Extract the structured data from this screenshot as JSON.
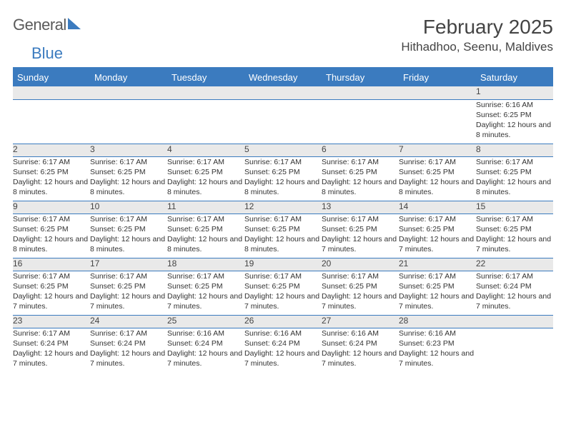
{
  "brand": {
    "word1": "General",
    "word2": "Blue"
  },
  "title": "February 2025",
  "location": "Hithadhoo, Seenu, Maldives",
  "colors": {
    "accent": "#3b7bbf",
    "header_bg": "#3b7bbf",
    "header_text": "#ffffff",
    "daynum_bg": "#e9e9e9",
    "body_text": "#333333",
    "background": "#ffffff"
  },
  "calendar": {
    "type": "table",
    "columns": [
      "Sunday",
      "Monday",
      "Tuesday",
      "Wednesday",
      "Thursday",
      "Friday",
      "Saturday"
    ],
    "weeks": [
      [
        null,
        null,
        null,
        null,
        null,
        null,
        {
          "day": "1",
          "sunrise": "Sunrise: 6:16 AM",
          "sunset": "Sunset: 6:25 PM",
          "daylight": "Daylight: 12 hours and 8 minutes."
        }
      ],
      [
        {
          "day": "2",
          "sunrise": "Sunrise: 6:17 AM",
          "sunset": "Sunset: 6:25 PM",
          "daylight": "Daylight: 12 hours and 8 minutes."
        },
        {
          "day": "3",
          "sunrise": "Sunrise: 6:17 AM",
          "sunset": "Sunset: 6:25 PM",
          "daylight": "Daylight: 12 hours and 8 minutes."
        },
        {
          "day": "4",
          "sunrise": "Sunrise: 6:17 AM",
          "sunset": "Sunset: 6:25 PM",
          "daylight": "Daylight: 12 hours and 8 minutes."
        },
        {
          "day": "5",
          "sunrise": "Sunrise: 6:17 AM",
          "sunset": "Sunset: 6:25 PM",
          "daylight": "Daylight: 12 hours and 8 minutes."
        },
        {
          "day": "6",
          "sunrise": "Sunrise: 6:17 AM",
          "sunset": "Sunset: 6:25 PM",
          "daylight": "Daylight: 12 hours and 8 minutes."
        },
        {
          "day": "7",
          "sunrise": "Sunrise: 6:17 AM",
          "sunset": "Sunset: 6:25 PM",
          "daylight": "Daylight: 12 hours and 8 minutes."
        },
        {
          "day": "8",
          "sunrise": "Sunrise: 6:17 AM",
          "sunset": "Sunset: 6:25 PM",
          "daylight": "Daylight: 12 hours and 8 minutes."
        }
      ],
      [
        {
          "day": "9",
          "sunrise": "Sunrise: 6:17 AM",
          "sunset": "Sunset: 6:25 PM",
          "daylight": "Daylight: 12 hours and 8 minutes."
        },
        {
          "day": "10",
          "sunrise": "Sunrise: 6:17 AM",
          "sunset": "Sunset: 6:25 PM",
          "daylight": "Daylight: 12 hours and 8 minutes."
        },
        {
          "day": "11",
          "sunrise": "Sunrise: 6:17 AM",
          "sunset": "Sunset: 6:25 PM",
          "daylight": "Daylight: 12 hours and 8 minutes."
        },
        {
          "day": "12",
          "sunrise": "Sunrise: 6:17 AM",
          "sunset": "Sunset: 6:25 PM",
          "daylight": "Daylight: 12 hours and 8 minutes."
        },
        {
          "day": "13",
          "sunrise": "Sunrise: 6:17 AM",
          "sunset": "Sunset: 6:25 PM",
          "daylight": "Daylight: 12 hours and 7 minutes."
        },
        {
          "day": "14",
          "sunrise": "Sunrise: 6:17 AM",
          "sunset": "Sunset: 6:25 PM",
          "daylight": "Daylight: 12 hours and 7 minutes."
        },
        {
          "day": "15",
          "sunrise": "Sunrise: 6:17 AM",
          "sunset": "Sunset: 6:25 PM",
          "daylight": "Daylight: 12 hours and 7 minutes."
        }
      ],
      [
        {
          "day": "16",
          "sunrise": "Sunrise: 6:17 AM",
          "sunset": "Sunset: 6:25 PM",
          "daylight": "Daylight: 12 hours and 7 minutes."
        },
        {
          "day": "17",
          "sunrise": "Sunrise: 6:17 AM",
          "sunset": "Sunset: 6:25 PM",
          "daylight": "Daylight: 12 hours and 7 minutes."
        },
        {
          "day": "18",
          "sunrise": "Sunrise: 6:17 AM",
          "sunset": "Sunset: 6:25 PM",
          "daylight": "Daylight: 12 hours and 7 minutes."
        },
        {
          "day": "19",
          "sunrise": "Sunrise: 6:17 AM",
          "sunset": "Sunset: 6:25 PM",
          "daylight": "Daylight: 12 hours and 7 minutes."
        },
        {
          "day": "20",
          "sunrise": "Sunrise: 6:17 AM",
          "sunset": "Sunset: 6:25 PM",
          "daylight": "Daylight: 12 hours and 7 minutes."
        },
        {
          "day": "21",
          "sunrise": "Sunrise: 6:17 AM",
          "sunset": "Sunset: 6:25 PM",
          "daylight": "Daylight: 12 hours and 7 minutes."
        },
        {
          "day": "22",
          "sunrise": "Sunrise: 6:17 AM",
          "sunset": "Sunset: 6:24 PM",
          "daylight": "Daylight: 12 hours and 7 minutes."
        }
      ],
      [
        {
          "day": "23",
          "sunrise": "Sunrise: 6:17 AM",
          "sunset": "Sunset: 6:24 PM",
          "daylight": "Daylight: 12 hours and 7 minutes."
        },
        {
          "day": "24",
          "sunrise": "Sunrise: 6:17 AM",
          "sunset": "Sunset: 6:24 PM",
          "daylight": "Daylight: 12 hours and 7 minutes."
        },
        {
          "day": "25",
          "sunrise": "Sunrise: 6:16 AM",
          "sunset": "Sunset: 6:24 PM",
          "daylight": "Daylight: 12 hours and 7 minutes."
        },
        {
          "day": "26",
          "sunrise": "Sunrise: 6:16 AM",
          "sunset": "Sunset: 6:24 PM",
          "daylight": "Daylight: 12 hours and 7 minutes."
        },
        {
          "day": "27",
          "sunrise": "Sunrise: 6:16 AM",
          "sunset": "Sunset: 6:24 PM",
          "daylight": "Daylight: 12 hours and 7 minutes."
        },
        {
          "day": "28",
          "sunrise": "Sunrise: 6:16 AM",
          "sunset": "Sunset: 6:23 PM",
          "daylight": "Daylight: 12 hours and 7 minutes."
        },
        null
      ]
    ]
  }
}
